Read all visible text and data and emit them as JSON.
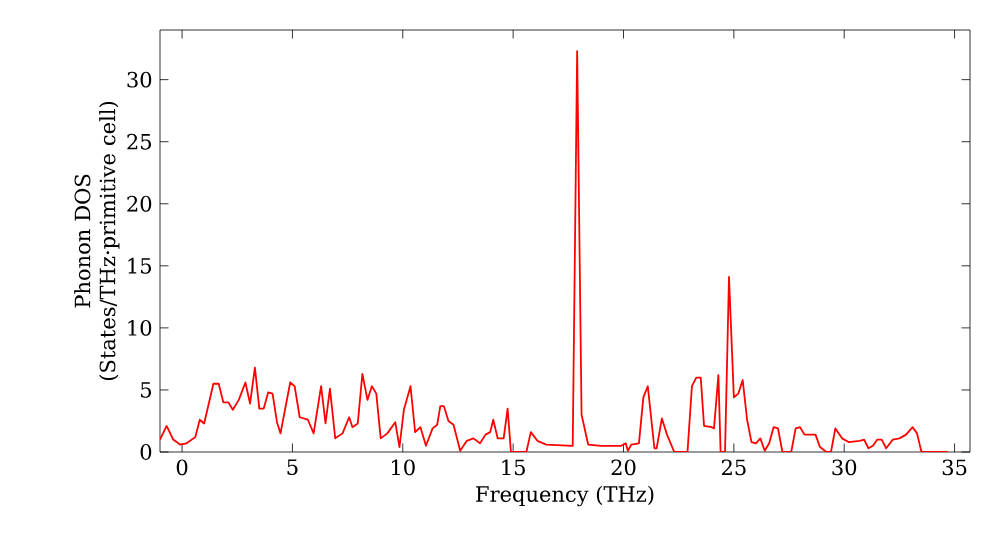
{
  "chart_data": {
    "type": "line",
    "xlabel": "Frequency (THz)",
    "ylabel": "Phonon DOS (States/THz·primitive cell)",
    "xlim": [
      -1,
      35.7
    ],
    "ylim": [
      0,
      34
    ],
    "xticks": [
      0,
      5,
      10,
      15,
      20,
      25,
      30,
      35
    ],
    "yticks": [
      0,
      5,
      10,
      15,
      20,
      25,
      30
    ],
    "grid": false,
    "marker": "none",
    "line_style": "solid",
    "series": [
      {
        "color": "#ff0000",
        "x": [
          -1.0,
          -0.7,
          -0.4,
          -0.1,
          0.2,
          0.6,
          0.8,
          1.0,
          1.42,
          1.66,
          1.87,
          2.1,
          2.3,
          2.57,
          2.87,
          3.08,
          3.3,
          3.5,
          3.7,
          3.9,
          4.1,
          4.3,
          4.46,
          4.9,
          5.1,
          5.33,
          5.7,
          5.96,
          6.3,
          6.5,
          6.7,
          6.94,
          7.27,
          7.57,
          7.72,
          7.96,
          8.17,
          8.4,
          8.6,
          8.8,
          9.0,
          9.3,
          9.66,
          9.85,
          10.05,
          10.35,
          10.56,
          10.8,
          11.05,
          11.35,
          11.56,
          11.7,
          11.86,
          12.07,
          12.3,
          12.6,
          12.9,
          13.2,
          13.5,
          13.75,
          13.96,
          14.1,
          14.3,
          14.57,
          14.75,
          14.9,
          15.2,
          15.6,
          15.8,
          16.1,
          16.5,
          17.7,
          17.9,
          18.1,
          18.4,
          19.0,
          19.9,
          20.1,
          20.2,
          20.35,
          20.7,
          20.9,
          21.1,
          21.4,
          21.5,
          21.74,
          21.97,
          22.3,
          22.9,
          23.1,
          23.3,
          23.5,
          23.65,
          24.0,
          24.1,
          24.3,
          24.4,
          24.6,
          24.78,
          25.0,
          25.2,
          25.4,
          25.6,
          25.8,
          26.0,
          26.2,
          26.4,
          26.6,
          26.8,
          27.0,
          27.2,
          27.6,
          27.8,
          28.0,
          28.2,
          28.5,
          28.7,
          28.9,
          29.2,
          29.4,
          29.6,
          29.9,
          30.2,
          30.7,
          30.9,
          31.1,
          31.3,
          31.5,
          31.7,
          31.9,
          32.2,
          32.5,
          32.8,
          33.1,
          33.3,
          33.5,
          34.7
        ],
        "values": [
          1.0,
          2.1,
          1.0,
          0.6,
          0.7,
          1.2,
          2.6,
          2.3,
          5.5,
          5.5,
          4.0,
          4.0,
          3.4,
          4.2,
          5.6,
          3.9,
          6.8,
          3.5,
          3.5,
          4.8,
          4.7,
          2.4,
          1.5,
          5.6,
          5.3,
          2.8,
          2.6,
          1.5,
          5.3,
          2.3,
          5.1,
          1.1,
          1.5,
          2.8,
          2.0,
          2.3,
          6.3,
          4.2,
          5.3,
          4.7,
          1.1,
          1.5,
          2.4,
          0.4,
          3.4,
          5.3,
          1.6,
          2.0,
          0.5,
          1.9,
          2.2,
          3.7,
          3.7,
          2.5,
          2.2,
          0.1,
          0.9,
          1.1,
          0.7,
          1.4,
          1.6,
          2.6,
          1.1,
          1.1,
          3.5,
          0.0,
          0.0,
          0.0,
          1.6,
          0.9,
          0.6,
          0.5,
          32.3,
          3.0,
          0.6,
          0.5,
          0.5,
          0.7,
          0.1,
          0.6,
          0.7,
          4.4,
          5.3,
          0.3,
          0.3,
          2.7,
          1.4,
          0.0,
          0.0,
          5.3,
          6.0,
          6.0,
          2.1,
          2.0,
          1.9,
          6.2,
          0.0,
          0.0,
          14.1,
          4.4,
          4.7,
          5.8,
          2.6,
          0.8,
          0.7,
          1.1,
          0.1,
          0.7,
          2.0,
          1.9,
          0.0,
          0.0,
          1.9,
          2.0,
          1.4,
          1.4,
          1.4,
          0.4,
          0.0,
          0.0,
          1.9,
          1.1,
          0.8,
          0.9,
          1.0,
          0.3,
          0.5,
          1.0,
          1.0,
          0.3,
          1.0,
          1.1,
          1.4,
          2.0,
          1.5,
          0.0,
          0.0
        ]
      }
    ]
  }
}
